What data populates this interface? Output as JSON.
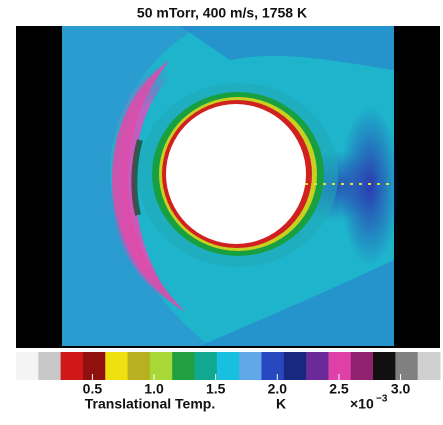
{
  "chart_data": {
    "type": "image",
    "title": "50 mTorr, 400 m/s, 1758 K",
    "colorbar": {
      "label": "Translational Temp.",
      "unit": "K",
      "scale": "×10",
      "exponent": "−3",
      "clim": [
        -0.12,
        3.32
      ],
      "ticks": [
        0.5,
        {
          "value": 1,
          "label": "1.0"
        },
        1.5,
        {
          "value": 2,
          "label": "2.0"
        },
        2.5,
        {
          "value": 3,
          "label": "3.0"
        }
      ],
      "colors": [
        "#f4f4f4",
        "#c8c8c8",
        "#d01818",
        "#901010",
        "#f0e010",
        "#b8b020",
        "#a8d838",
        "#20a040",
        "#10a890",
        "#18c0e0",
        "#60a8e8",
        "#2848c0",
        "#182880",
        "#6a2a98",
        "#e040a8",
        "#902070",
        "#101010",
        "#808080",
        "#d0d0d0"
      ]
    }
  }
}
